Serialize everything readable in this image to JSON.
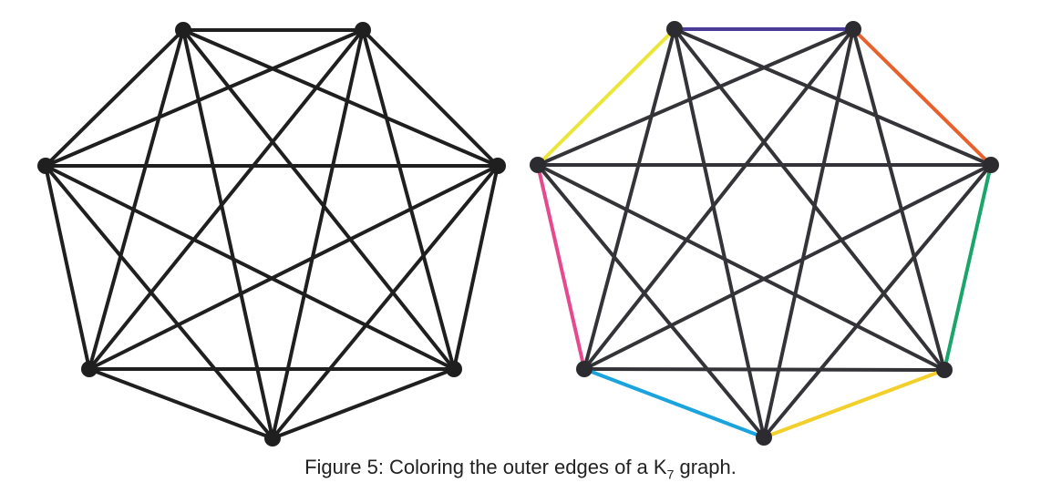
{
  "figure": {
    "caption": {
      "prefix": "Figure 5: Coloring the outer edges of a K",
      "subscript": "7",
      "suffix": " graph."
    },
    "graphs": [
      {
        "id": "plain",
        "node_color": "#1f1f1f",
        "edge_color": "#1f1f1f",
        "outer_edge_colors": [
          "#1f1f1f",
          "#1f1f1f",
          "#1f1f1f",
          "#1f1f1f",
          "#1f1f1f",
          "#1f1f1f",
          "#1f1f1f"
        ]
      },
      {
        "id": "colored",
        "node_color": "#2b2b30",
        "edge_color": "#333338",
        "outer_edge_colors": [
          "#4a3d99",
          "#e8602c",
          "#1aa56a",
          "#f2cf2a",
          "#1ba3dd",
          "#e6498e",
          "#ece63a"
        ]
      }
    ]
  }
}
